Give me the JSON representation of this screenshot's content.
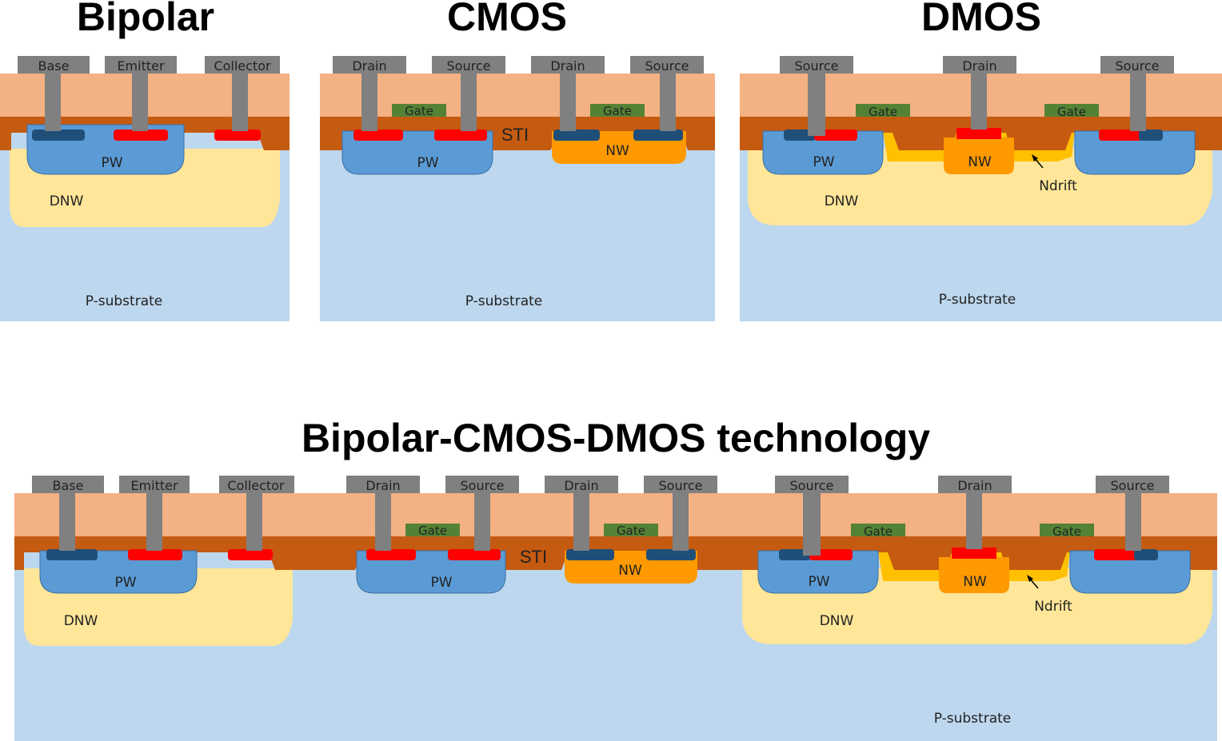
{
  "titles": {
    "bipolar": "Bipolar",
    "cmos": "CMOS",
    "dmos": "DMOS",
    "combined": "Bipolar-CMOS-DMOS technology"
  },
  "labels": {
    "base": "Base",
    "emitter": "Emitter",
    "collector": "Collector",
    "drain": "Drain",
    "source": "Source",
    "gate": "Gate",
    "pw": "PW",
    "nw": "NW",
    "dnw": "DNW",
    "sti": "STI",
    "ndrift": "Ndrift",
    "psub": "P-substrate"
  },
  "colors": {
    "substrate": "#bdd7ee",
    "oxide": "#f4b183",
    "sti": "#c55a11",
    "dnw": "#ffe699",
    "pw": "#5b9bd5",
    "nw": "#ff9900",
    "ndrift": "#ffc000",
    "n_plus": "#ff0000",
    "p_plus": "#1f4e79",
    "gate": "#548235",
    "contact": "#808080"
  }
}
